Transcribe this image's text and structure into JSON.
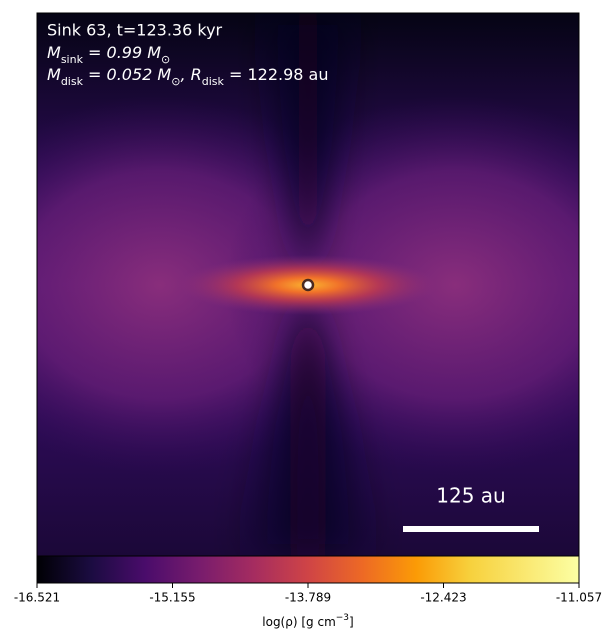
{
  "chart_data": {
    "type": "density-map",
    "title": "Sink 63, t=123.36 kyr",
    "annotations": [
      [
        {
          "text": "M"
        },
        {
          "text": "sink",
          "sub": true
        },
        {
          "text": " = 0.99 M"
        },
        {
          "text": "⊙",
          "sub": true
        }
      ],
      [
        {
          "text": "M"
        },
        {
          "text": "disk",
          "sub": true
        },
        {
          "text": " = 0.052 M"
        },
        {
          "text": "⊙",
          "sub": true
        },
        {
          "text": ", R"
        },
        {
          "text": "disk",
          "sub": true
        },
        {
          "text": " = 122.98 au"
        }
      ]
    ],
    "scale_bar_label": "125 au",
    "colorbar": {
      "label": [
        {
          "text": "log(ρ) [g cm"
        },
        {
          "text": "−3",
          "sup": true
        },
        {
          "text": "]"
        }
      ],
      "lim": [
        -16.521,
        -11.057
      ],
      "ticks": [
        -16.521,
        -15.155,
        -13.789,
        -12.423,
        -11.057
      ],
      "colormap": "inferno"
    }
  }
}
